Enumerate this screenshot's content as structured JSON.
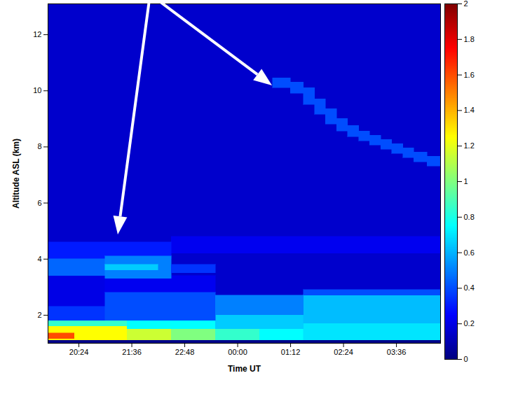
{
  "chart_data": {
    "type": "heatmap",
    "xlabel": "Time UT",
    "ylabel": "Altitude ASL (km)",
    "xlim": [
      19.7,
      28.6
    ],
    "xticks": [
      {
        "value": 20.4,
        "label": "20:24"
      },
      {
        "value": 21.6,
        "label": "21:36"
      },
      {
        "value": 22.8,
        "label": "22:48"
      },
      {
        "value": 24,
        "label": "00:00"
      },
      {
        "value": 25.2,
        "label": "01:12"
      },
      {
        "value": 26.4,
        "label": "02:24"
      },
      {
        "value": 27.6,
        "label": "03:36"
      }
    ],
    "ylim": [
      1.0,
      13.1
    ],
    "yticks": [
      2,
      4,
      6,
      8,
      10,
      12
    ],
    "colorbar": {
      "range": [
        0,
        2
      ],
      "ticks": [
        0,
        0.2,
        0.4,
        0.6,
        0.8,
        1,
        1.2,
        1.4,
        1.6,
        1.8,
        2
      ]
    },
    "cells": [
      {
        "x1": 19.7,
        "x2": 28.6,
        "y1": 1.0,
        "y2": 13.1,
        "value": 0.15
      },
      {
        "x1": 22.5,
        "x2": 28.6,
        "y1": 4.2,
        "y2": 4.8,
        "value": 0.22
      },
      {
        "x1": 19.7,
        "x2": 28.6,
        "y1": 1.0,
        "y2": 1.1,
        "value": 0.02
      },
      {
        "x1": 19.7,
        "x2": 21.5,
        "y1": 1.1,
        "y2": 1.6,
        "value": 1.25
      },
      {
        "x1": 21.5,
        "x2": 22.5,
        "y1": 1.1,
        "y2": 1.5,
        "value": 1.15
      },
      {
        "x1": 22.5,
        "x2": 23.5,
        "y1": 1.1,
        "y2": 1.5,
        "value": 1.0
      },
      {
        "x1": 23.5,
        "x2": 24.5,
        "y1": 1.1,
        "y2": 1.5,
        "value": 0.85
      },
      {
        "x1": 24.5,
        "x2": 25.5,
        "y1": 1.1,
        "y2": 1.6,
        "value": 0.75
      },
      {
        "x1": 25.5,
        "x2": 28.6,
        "y1": 1.1,
        "y2": 1.7,
        "value": 0.7
      },
      {
        "x1": 19.7,
        "x2": 20.3,
        "y1": 1.15,
        "y2": 1.35,
        "value": 1.6
      },
      {
        "x1": 19.7,
        "x2": 21.5,
        "y1": 1.6,
        "y2": 1.8,
        "value": 0.85
      },
      {
        "x1": 21.5,
        "x2": 23.5,
        "y1": 1.5,
        "y2": 1.8,
        "value": 0.75
      },
      {
        "x1": 23.5,
        "x2": 25.5,
        "y1": 1.5,
        "y2": 2.0,
        "value": 0.65
      },
      {
        "x1": 25.5,
        "x2": 28.6,
        "y1": 1.7,
        "y2": 2.7,
        "value": 0.62
      },
      {
        "x1": 25.5,
        "x2": 28.6,
        "y1": 2.7,
        "y2": 2.9,
        "value": 0.4
      },
      {
        "x1": 19.7,
        "x2": 21.0,
        "y1": 2.3,
        "y2": 3.4,
        "value": 0.2
      },
      {
        "x1": 21.0,
        "x2": 23.5,
        "y1": 2.8,
        "y2": 3.4,
        "value": 0.22
      },
      {
        "x1": 19.7,
        "x2": 21.0,
        "y1": 1.8,
        "y2": 2.3,
        "value": 0.35
      },
      {
        "x1": 21.0,
        "x2": 23.5,
        "y1": 1.8,
        "y2": 2.8,
        "value": 0.4
      },
      {
        "x1": 23.5,
        "x2": 25.5,
        "y1": 2.0,
        "y2": 2.7,
        "value": 0.5
      },
      {
        "x1": 19.7,
        "x2": 22.5,
        "y1": 4.0,
        "y2": 4.6,
        "value": 0.3
      },
      {
        "x1": 19.7,
        "x2": 21.0,
        "y1": 3.4,
        "y2": 4.0,
        "value": 0.45
      },
      {
        "x1": 21.0,
        "x2": 22.5,
        "y1": 3.3,
        "y2": 4.1,
        "value": 0.5
      },
      {
        "x1": 22.5,
        "x2": 23.5,
        "y1": 3.5,
        "y2": 3.8,
        "value": 0.35
      },
      {
        "x1": 21.0,
        "x2": 22.2,
        "y1": 3.6,
        "y2": 3.8,
        "value": 0.65
      },
      {
        "x1": 24.8,
        "x2": 25.2,
        "y1": 10.1,
        "y2": 10.45,
        "value": 0.4
      },
      {
        "x1": 25.2,
        "x2": 25.5,
        "y1": 9.9,
        "y2": 10.3,
        "value": 0.4
      },
      {
        "x1": 25.5,
        "x2": 25.75,
        "y1": 9.5,
        "y2": 10.1,
        "value": 0.4
      },
      {
        "x1": 25.75,
        "x2": 26.0,
        "y1": 9.15,
        "y2": 9.7,
        "value": 0.4
      },
      {
        "x1": 26.0,
        "x2": 26.25,
        "y1": 8.8,
        "y2": 9.35,
        "value": 0.4
      },
      {
        "x1": 26.25,
        "x2": 26.5,
        "y1": 8.55,
        "y2": 9.0,
        "value": 0.4
      },
      {
        "x1": 26.5,
        "x2": 26.75,
        "y1": 8.35,
        "y2": 8.75,
        "value": 0.4
      },
      {
        "x1": 26.75,
        "x2": 27.0,
        "y1": 8.2,
        "y2": 8.55,
        "value": 0.4
      },
      {
        "x1": 27.0,
        "x2": 27.25,
        "y1": 8.05,
        "y2": 8.4,
        "value": 0.4
      },
      {
        "x1": 27.25,
        "x2": 27.5,
        "y1": 7.9,
        "y2": 8.25,
        "value": 0.4
      },
      {
        "x1": 27.5,
        "x2": 27.75,
        "y1": 7.75,
        "y2": 8.1,
        "value": 0.4
      },
      {
        "x1": 27.75,
        "x2": 28.0,
        "y1": 7.6,
        "y2": 7.95,
        "value": 0.4
      },
      {
        "x1": 28.0,
        "x2": 28.3,
        "y1": 7.45,
        "y2": 7.8,
        "value": 0.4
      },
      {
        "x1": 28.3,
        "x2": 28.6,
        "y1": 7.3,
        "y2": 7.65,
        "value": 0.4
      }
    ]
  }
}
